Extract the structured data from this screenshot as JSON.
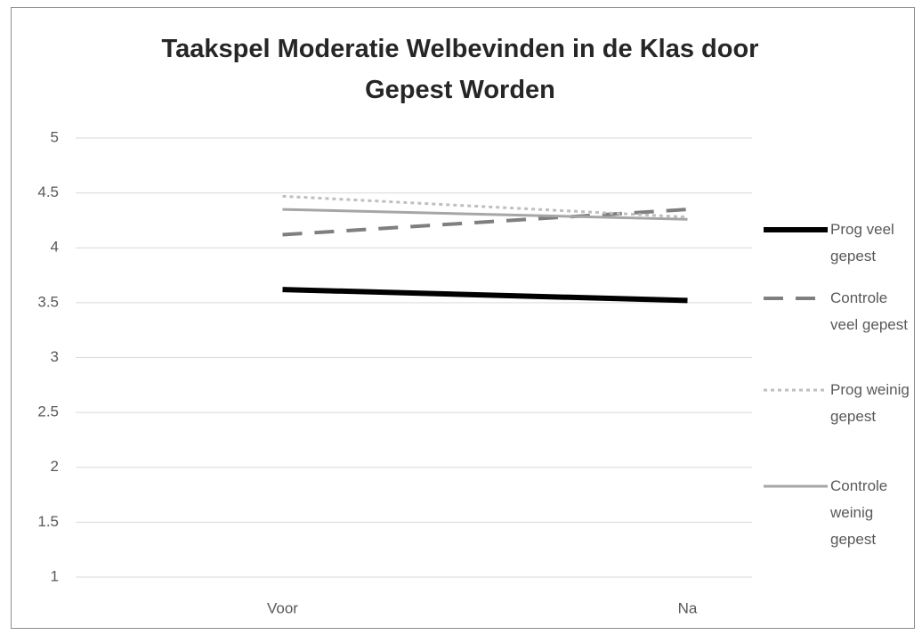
{
  "chart_data": {
    "type": "line",
    "title": "Taakspel Moderatie Welbevinden in de Klas door Gepest Worden",
    "categories": [
      "Voor",
      "Na"
    ],
    "series": [
      {
        "name": "Prog veel gepest",
        "color": "#000000",
        "dash": "solid",
        "values": [
          3.62,
          3.52
        ]
      },
      {
        "name": "Controle veel gepest",
        "color": "#7f7f7f",
        "dash": "dashed",
        "values": [
          4.12,
          4.35
        ]
      },
      {
        "name": "Prog weinig gepest",
        "color": "#bfbfbf",
        "dash": "dotted",
        "values": [
          4.47,
          4.28
        ]
      },
      {
        "name": "Controle weinig gepest",
        "color": "#a6a6a6",
        "dash": "solid",
        "values": [
          4.35,
          4.26
        ]
      }
    ],
    "ylim": [
      1,
      5
    ],
    "yticks": [
      1,
      1.5,
      2,
      2.5,
      3,
      3.5,
      4,
      4.5,
      5
    ],
    "grid": true,
    "legend": "right"
  }
}
